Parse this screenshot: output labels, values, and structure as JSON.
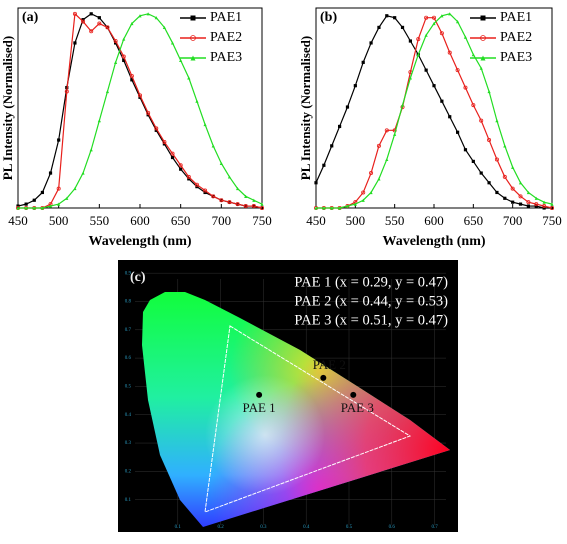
{
  "chart_data": [
    {
      "type": "line",
      "label": "(a)",
      "x_label": "Wavelength (nm)",
      "y_label": "PL Intensity (Normalised)",
      "x": [
        450,
        460,
        470,
        480,
        490,
        500,
        510,
        520,
        530,
        540,
        550,
        560,
        570,
        580,
        590,
        600,
        610,
        620,
        630,
        640,
        650,
        660,
        670,
        680,
        690,
        700,
        710,
        720,
        730,
        740,
        750
      ],
      "xlim": [
        450,
        750
      ],
      "xticks": [
        450,
        500,
        550,
        600,
        650,
        700,
        750
      ],
      "ylim": [
        0,
        1.03
      ],
      "legend": "upper right",
      "series": [
        {
          "name": "PAE1",
          "color": "#000000",
          "marker": "square",
          "values": [
            0.01,
            0.02,
            0.04,
            0.08,
            0.18,
            0.35,
            0.62,
            0.85,
            0.97,
            1.0,
            0.98,
            0.93,
            0.85,
            0.76,
            0.66,
            0.57,
            0.48,
            0.4,
            0.33,
            0.26,
            0.2,
            0.15,
            0.11,
            0.08,
            0.06,
            0.04,
            0.03,
            0.02,
            0.01,
            0.01,
            0.0
          ]
        },
        {
          "name": "PAE2",
          "color": "#e8201c",
          "marker": "circle",
          "values": [
            0.0,
            0.0,
            0.0,
            0.0,
            0.02,
            0.1,
            0.6,
            1.0,
            0.96,
            0.91,
            0.95,
            0.93,
            0.86,
            0.78,
            0.68,
            0.58,
            0.49,
            0.41,
            0.34,
            0.28,
            0.22,
            0.16,
            0.12,
            0.09,
            0.06,
            0.04,
            0.03,
            0.02,
            0.01,
            0.01,
            0.0
          ]
        },
        {
          "name": "PAE3",
          "color": "#22dd22",
          "marker": "triangle",
          "values": [
            0.0,
            0.0,
            0.0,
            0.0,
            0.01,
            0.02,
            0.05,
            0.1,
            0.18,
            0.3,
            0.45,
            0.6,
            0.75,
            0.87,
            0.95,
            0.99,
            1.0,
            0.98,
            0.93,
            0.85,
            0.76,
            0.67,
            0.55,
            0.43,
            0.32,
            0.23,
            0.16,
            0.1,
            0.06,
            0.04,
            0.02
          ]
        }
      ]
    },
    {
      "type": "line",
      "label": "(b)",
      "x_label": "Wavelength (nm)",
      "y_label": "PL Intensity (Normalised)",
      "x": [
        450,
        460,
        470,
        480,
        490,
        500,
        510,
        520,
        530,
        540,
        550,
        560,
        570,
        580,
        590,
        600,
        610,
        620,
        630,
        640,
        650,
        660,
        670,
        680,
        690,
        700,
        710,
        720,
        730,
        740,
        750
      ],
      "xlim": [
        450,
        750
      ],
      "xticks": [
        450,
        500,
        550,
        600,
        650,
        700,
        750
      ],
      "ylim": [
        0,
        1.03
      ],
      "legend": "upper right",
      "series": [
        {
          "name": "PAE1",
          "color": "#000000",
          "marker": "square",
          "values": [
            0.13,
            0.22,
            0.32,
            0.42,
            0.52,
            0.63,
            0.75,
            0.85,
            0.93,
            0.99,
            0.98,
            0.93,
            0.86,
            0.79,
            0.71,
            0.63,
            0.55,
            0.47,
            0.39,
            0.3,
            0.24,
            0.18,
            0.13,
            0.08,
            0.05,
            0.03,
            0.02,
            0.01,
            0.01,
            0.0,
            0.0
          ]
        },
        {
          "name": "PAE2",
          "color": "#e8201c",
          "marker": "circle",
          "values": [
            0.0,
            0.0,
            0.0,
            0.0,
            0.01,
            0.03,
            0.08,
            0.18,
            0.32,
            0.4,
            0.4,
            0.52,
            0.7,
            0.87,
            0.98,
            0.98,
            0.9,
            0.8,
            0.71,
            0.62,
            0.53,
            0.45,
            0.35,
            0.25,
            0.16,
            0.1,
            0.06,
            0.03,
            0.02,
            0.01,
            0.0
          ]
        },
        {
          "name": "PAE3",
          "color": "#22dd22",
          "marker": "triangle",
          "values": [
            0.0,
            0.0,
            0.0,
            0.0,
            0.01,
            0.02,
            0.04,
            0.08,
            0.15,
            0.25,
            0.38,
            0.53,
            0.67,
            0.79,
            0.89,
            0.95,
            0.99,
            1.0,
            0.96,
            0.88,
            0.79,
            0.72,
            0.6,
            0.45,
            0.32,
            0.21,
            0.13,
            0.08,
            0.05,
            0.03,
            0.02
          ]
        }
      ]
    },
    {
      "type": "scatter",
      "label": "(c)",
      "xlim": [
        0,
        0.75
      ],
      "ylim": [
        0,
        0.95
      ],
      "grid": true,
      "xticks": [
        0.1,
        0.2,
        0.3,
        0.4,
        0.5,
        0.6,
        0.7
      ],
      "yticks": [
        0.1,
        0.2,
        0.3,
        0.4,
        0.5,
        0.6,
        0.7,
        0.8,
        0.9
      ],
      "series": [
        {
          "name": "PAE 1",
          "color": "#000000",
          "x": [
            0.29
          ],
          "values": [
            0.47
          ]
        },
        {
          "name": "PAE 2",
          "color": "#000000",
          "x": [
            0.44
          ],
          "values": [
            0.53
          ]
        },
        {
          "name": "PAE 3",
          "color": "#000000",
          "x": [
            0.51
          ],
          "values": [
            0.47
          ]
        }
      ],
      "annotations": [
        "PAE 1 (x = 0.29, y = 0.47)",
        "PAE 2 (x = 0.44, y = 0.53)",
        "PAE 3 (x = 0.51, y = 0.47)"
      ]
    }
  ]
}
